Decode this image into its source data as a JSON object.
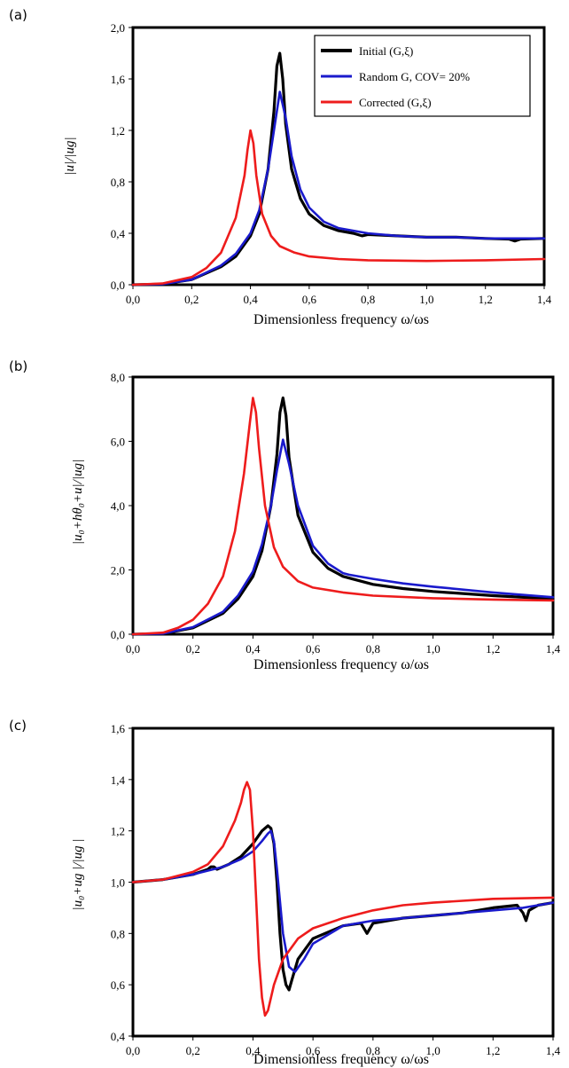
{
  "colors": {
    "initial": "#000000",
    "random": "#1a1acc",
    "corrected": "#ee1c1c"
  },
  "legend": [
    {
      "key": "initial",
      "label": "Initial (G,ξ)"
    },
    {
      "key": "random",
      "label": "Random G, COV= 20%"
    },
    {
      "key": "corrected",
      "label": "Corrected (G,ξ)"
    }
  ],
  "chart_data": [
    {
      "panel": "(a)",
      "type": "line",
      "xlabel": "Dimensionless frequency ω/ωs",
      "ylabel": "|u|/|ug|",
      "xlim": [
        0,
        1.4
      ],
      "ylim": [
        0,
        2.0
      ],
      "xticks": [
        "0,0",
        "0,2",
        "0,4",
        "0,6",
        "0,8",
        "1,0",
        "1,2",
        "1,4"
      ],
      "yticks": [
        "0,0",
        "0,4",
        "0,8",
        "1,2",
        "1,6",
        "2,0"
      ],
      "series": [
        {
          "key": "initial",
          "name": "Initial (G,ξ)",
          "x": [
            0,
            0.1,
            0.2,
            0.3,
            0.35,
            0.4,
            0.43,
            0.46,
            0.48,
            0.49,
            0.5,
            0.51,
            0.52,
            0.54,
            0.57,
            0.6,
            0.65,
            0.7,
            0.75,
            0.78,
            0.8,
            0.9,
            1.0,
            1.1,
            1.2,
            1.28,
            1.3,
            1.32,
            1.4
          ],
          "y": [
            0,
            0.005,
            0.04,
            0.14,
            0.22,
            0.38,
            0.55,
            0.9,
            1.35,
            1.7,
            1.8,
            1.6,
            1.25,
            0.9,
            0.67,
            0.55,
            0.46,
            0.42,
            0.4,
            0.38,
            0.39,
            0.38,
            0.37,
            0.37,
            0.36,
            0.355,
            0.34,
            0.355,
            0.36
          ]
        },
        {
          "key": "random",
          "name": "Random G, COV= 20%",
          "x": [
            0,
            0.1,
            0.2,
            0.3,
            0.35,
            0.4,
            0.43,
            0.46,
            0.48,
            0.5,
            0.52,
            0.54,
            0.57,
            0.6,
            0.65,
            0.7,
            0.8,
            0.9,
            1.0,
            1.1,
            1.2,
            1.3,
            1.4
          ],
          "y": [
            0,
            0.005,
            0.04,
            0.15,
            0.24,
            0.4,
            0.58,
            0.9,
            1.2,
            1.5,
            1.3,
            1.0,
            0.74,
            0.6,
            0.49,
            0.44,
            0.4,
            0.38,
            0.37,
            0.37,
            0.36,
            0.36,
            0.36
          ]
        },
        {
          "key": "corrected",
          "name": "Corrected (G,ξ)",
          "x": [
            0,
            0.1,
            0.2,
            0.25,
            0.3,
            0.35,
            0.38,
            0.39,
            0.4,
            0.41,
            0.42,
            0.44,
            0.47,
            0.5,
            0.55,
            0.6,
            0.7,
            0.8,
            1.0,
            1.2,
            1.4
          ],
          "y": [
            0,
            0.01,
            0.06,
            0.13,
            0.25,
            0.52,
            0.85,
            1.05,
            1.2,
            1.1,
            0.85,
            0.55,
            0.38,
            0.3,
            0.25,
            0.22,
            0.2,
            0.19,
            0.185,
            0.19,
            0.2
          ]
        }
      ]
    },
    {
      "panel": "(b)",
      "type": "line",
      "xlabel": "Dimensionless frequency ω/ωs",
      "ylabel": "|u₀+hθ₀+u|/|ug|",
      "xlim": [
        0,
        1.4
      ],
      "ylim": [
        0,
        8.0
      ],
      "xticks": [
        "0,0",
        "0,2",
        "0,4",
        "0,6",
        "0,8",
        "1,0",
        "1,2",
        "1,4"
      ],
      "yticks": [
        "0,0",
        "2,0",
        "4,0",
        "6,0",
        "8,0"
      ],
      "series": [
        {
          "key": "initial",
          "name": "Initial (G,ξ)",
          "x": [
            0,
            0.1,
            0.2,
            0.3,
            0.35,
            0.4,
            0.43,
            0.46,
            0.48,
            0.49,
            0.5,
            0.51,
            0.52,
            0.55,
            0.6,
            0.65,
            0.7,
            0.8,
            0.9,
            1.0,
            1.2,
            1.4
          ],
          "y": [
            0,
            0.02,
            0.2,
            0.65,
            1.1,
            1.8,
            2.6,
            4.0,
            5.6,
            6.9,
            7.35,
            6.8,
            5.5,
            3.7,
            2.55,
            2.05,
            1.8,
            1.55,
            1.42,
            1.33,
            1.2,
            1.1
          ]
        },
        {
          "key": "random",
          "name": "Random G, COV= 20%",
          "x": [
            0,
            0.1,
            0.2,
            0.3,
            0.35,
            0.4,
            0.43,
            0.46,
            0.48,
            0.5,
            0.52,
            0.55,
            0.6,
            0.65,
            0.7,
            0.72,
            0.8,
            0.9,
            1.0,
            1.2,
            1.4
          ],
          "y": [
            0,
            0.02,
            0.22,
            0.7,
            1.2,
            1.95,
            2.8,
            4.0,
            5.1,
            6.05,
            5.3,
            4.0,
            2.75,
            2.2,
            1.9,
            1.85,
            1.72,
            1.58,
            1.48,
            1.3,
            1.15
          ]
        },
        {
          "key": "corrected",
          "name": "Corrected (G,ξ)",
          "x": [
            0,
            0.1,
            0.15,
            0.2,
            0.25,
            0.3,
            0.34,
            0.37,
            0.39,
            0.4,
            0.41,
            0.42,
            0.44,
            0.47,
            0.5,
            0.55,
            0.6,
            0.7,
            0.8,
            1.0,
            1.2,
            1.4
          ],
          "y": [
            0,
            0.05,
            0.2,
            0.45,
            0.95,
            1.8,
            3.2,
            5.0,
            6.6,
            7.35,
            6.9,
            5.8,
            4.0,
            2.7,
            2.1,
            1.65,
            1.45,
            1.3,
            1.2,
            1.12,
            1.08,
            1.05
          ]
        }
      ]
    },
    {
      "panel": "(c)",
      "type": "line",
      "xlabel": "Dimensionless frequency ω/ωs",
      "ylabel": "|u₀+ug |/|ug |",
      "xlim": [
        0,
        1.4
      ],
      "ylim": [
        0.4,
        1.6
      ],
      "xticks": [
        "0,0",
        "0,2",
        "0,4",
        "0,6",
        "0,8",
        "1,0",
        "1,2",
        "1,4"
      ],
      "yticks": [
        "0,4",
        "0,6",
        "0,8",
        "1,0",
        "1,2",
        "1,4",
        "1,6"
      ],
      "series": [
        {
          "key": "initial",
          "name": "Initial (G,ξ)",
          "x": [
            0,
            0.1,
            0.2,
            0.25,
            0.26,
            0.27,
            0.28,
            0.32,
            0.36,
            0.4,
            0.43,
            0.45,
            0.46,
            0.47,
            0.48,
            0.49,
            0.5,
            0.51,
            0.52,
            0.53,
            0.55,
            0.6,
            0.7,
            0.76,
            0.78,
            0.8,
            0.85,
            0.9,
            1.0,
            1.1,
            1.2,
            1.28,
            1.3,
            1.31,
            1.32,
            1.35,
            1.4
          ],
          "y": [
            1.0,
            1.01,
            1.03,
            1.05,
            1.06,
            1.06,
            1.05,
            1.07,
            1.1,
            1.15,
            1.2,
            1.22,
            1.21,
            1.15,
            1.0,
            0.8,
            0.66,
            0.6,
            0.58,
            0.62,
            0.7,
            0.78,
            0.83,
            0.84,
            0.8,
            0.84,
            0.85,
            0.86,
            0.87,
            0.88,
            0.9,
            0.91,
            0.88,
            0.85,
            0.89,
            0.91,
            0.92
          ]
        },
        {
          "key": "random",
          "name": "Random G, COV= 20%",
          "x": [
            0,
            0.1,
            0.2,
            0.3,
            0.36,
            0.4,
            0.43,
            0.45,
            0.46,
            0.47,
            0.48,
            0.5,
            0.52,
            0.54,
            0.57,
            0.6,
            0.7,
            0.8,
            0.9,
            1.0,
            1.1,
            1.2,
            1.3,
            1.4
          ],
          "y": [
            1.0,
            1.01,
            1.03,
            1.06,
            1.09,
            1.12,
            1.16,
            1.19,
            1.2,
            1.16,
            1.05,
            0.8,
            0.67,
            0.65,
            0.7,
            0.76,
            0.83,
            0.85,
            0.86,
            0.87,
            0.88,
            0.89,
            0.9,
            0.92
          ]
        },
        {
          "key": "corrected",
          "name": "Corrected (G,ξ)",
          "x": [
            0,
            0.1,
            0.2,
            0.25,
            0.3,
            0.34,
            0.36,
            0.37,
            0.38,
            0.39,
            0.4,
            0.41,
            0.42,
            0.43,
            0.44,
            0.45,
            0.47,
            0.5,
            0.55,
            0.6,
            0.7,
            0.8,
            0.9,
            1.0,
            1.2,
            1.4
          ],
          "y": [
            1.0,
            1.01,
            1.04,
            1.07,
            1.14,
            1.24,
            1.31,
            1.36,
            1.39,
            1.36,
            1.2,
            0.95,
            0.7,
            0.55,
            0.48,
            0.5,
            0.6,
            0.7,
            0.78,
            0.82,
            0.86,
            0.89,
            0.91,
            0.92,
            0.935,
            0.94
          ]
        }
      ]
    }
  ]
}
